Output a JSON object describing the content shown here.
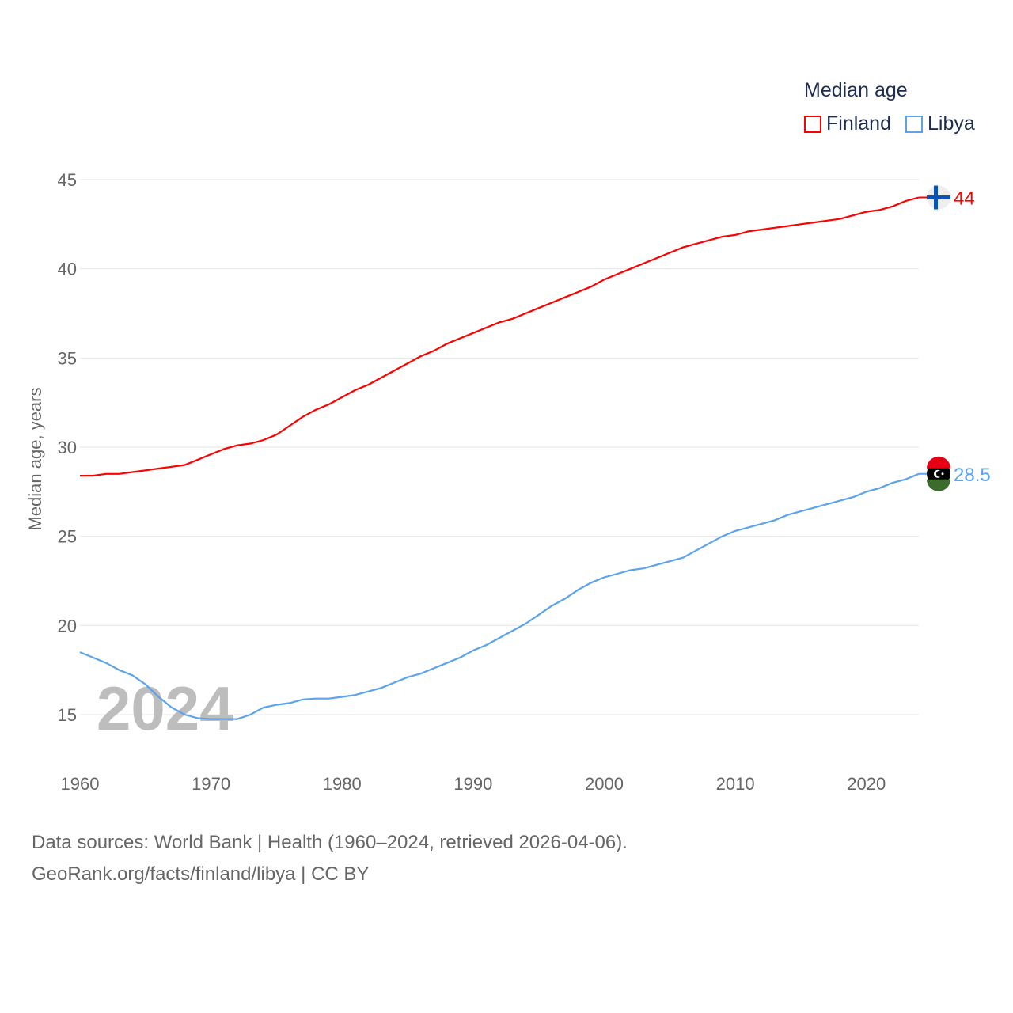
{
  "chart_data": {
    "type": "line",
    "title": "",
    "xlabel": "",
    "ylabel": "Median age, years",
    "xlim": [
      1960,
      2024
    ],
    "ylim": [
      12.5,
      46
    ],
    "yticks": [
      15,
      20,
      25,
      30,
      35,
      40,
      45
    ],
    "xticks": [
      1960,
      1970,
      1980,
      1990,
      2000,
      2010,
      2020
    ],
    "grid": true,
    "legend_title": "Median age",
    "legend_position": "top-right",
    "watermark_year": "2024",
    "x": [
      1960,
      1961,
      1962,
      1963,
      1964,
      1965,
      1966,
      1967,
      1968,
      1969,
      1970,
      1971,
      1972,
      1973,
      1974,
      1975,
      1976,
      1977,
      1978,
      1979,
      1980,
      1981,
      1982,
      1983,
      1984,
      1985,
      1986,
      1987,
      1988,
      1989,
      1990,
      1991,
      1992,
      1993,
      1994,
      1995,
      1996,
      1997,
      1998,
      1999,
      2000,
      2001,
      2002,
      2003,
      2004,
      2005,
      2006,
      2007,
      2008,
      2009,
      2010,
      2011,
      2012,
      2013,
      2014,
      2015,
      2016,
      2017,
      2018,
      2019,
      2020,
      2021,
      2022,
      2023,
      2024
    ],
    "series": [
      {
        "name": "Finland",
        "color": "#ff0000",
        "end_label": "44",
        "flag": "finland-flag",
        "values": [
          28.4,
          28.4,
          28.5,
          28.5,
          28.6,
          28.7,
          28.8,
          28.9,
          29.0,
          29.3,
          29.6,
          29.9,
          30.1,
          30.2,
          30.4,
          30.7,
          31.2,
          31.7,
          32.1,
          32.4,
          32.8,
          33.2,
          33.5,
          33.9,
          34.3,
          34.7,
          35.1,
          35.4,
          35.8,
          36.1,
          36.4,
          36.7,
          37.0,
          37.2,
          37.5,
          37.8,
          38.1,
          38.4,
          38.7,
          39.0,
          39.4,
          39.7,
          40.0,
          40.3,
          40.6,
          40.9,
          41.2,
          41.4,
          41.6,
          41.8,
          41.9,
          42.1,
          42.2,
          42.3,
          42.4,
          42.5,
          42.6,
          42.7,
          42.8,
          43.0,
          43.2,
          43.3,
          43.5,
          43.8,
          44.0
        ]
      },
      {
        "name": "Libya",
        "color": "#5ba3ec",
        "end_label": "28.5",
        "flag": "libya-flag",
        "values": [
          18.5,
          18.2,
          17.9,
          17.5,
          17.2,
          16.7,
          16.0,
          15.4,
          15.0,
          14.8,
          14.75,
          14.75,
          14.75,
          15.0,
          15.4,
          15.55,
          15.65,
          15.85,
          15.9,
          15.9,
          16.0,
          16.1,
          16.3,
          16.5,
          16.8,
          17.1,
          17.3,
          17.6,
          17.9,
          18.2,
          18.6,
          18.9,
          19.3,
          19.7,
          20.1,
          20.6,
          21.1,
          21.5,
          22.0,
          22.4,
          22.7,
          22.9,
          23.1,
          23.2,
          23.4,
          23.6,
          23.8,
          24.2,
          24.6,
          25.0,
          25.3,
          25.5,
          25.7,
          25.9,
          26.2,
          26.4,
          26.6,
          26.8,
          27.0,
          27.2,
          27.5,
          27.7,
          28.0,
          28.2,
          28.5
        ]
      }
    ]
  },
  "footer": {
    "line1": "Data sources: World Bank | Health (1960–2024, retrieved 2026-04-06).",
    "line2": "GeoRank.org/facts/finland/libya | CC BY"
  }
}
